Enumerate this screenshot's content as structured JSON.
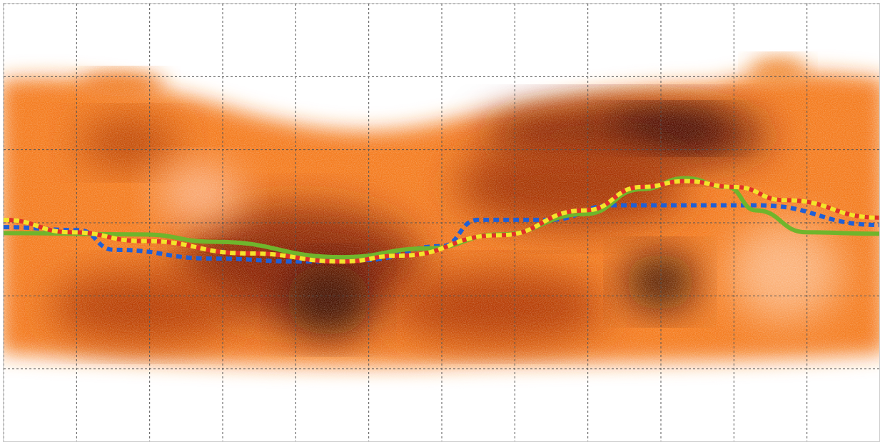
{
  "chart_data": {
    "type": "line",
    "xlim": [
      0,
      12
    ],
    "ylim": [
      0,
      6
    ],
    "xticks": [
      0,
      1,
      2,
      3,
      4,
      5,
      6,
      7,
      8,
      9,
      10,
      11,
      12
    ],
    "yticks": [
      0,
      1,
      2,
      3,
      4,
      5,
      6
    ],
    "grid": true,
    "series": [
      {
        "color": "#1f5fd6",
        "dashed": true,
        "x": [
          0,
          1.03,
          1.51,
          2.88,
          4.05,
          4.93,
          6.0,
          6.49,
          7.47,
          8.35,
          10.3,
          12
        ],
        "values": [
          2.94,
          2.9,
          2.63,
          2.51,
          2.47,
          2.49,
          2.68,
          3.04,
          3.04,
          3.24,
          3.24,
          2.97
        ]
      },
      {
        "color": "#6fb52c",
        "dashed": false,
        "x": [
          0,
          1.91,
          2.88,
          4.64,
          5.81,
          6.79,
          7.96,
          8.74,
          9.33,
          9.91,
          10.3,
          10.99,
          12
        ],
        "values": [
          2.86,
          2.84,
          2.74,
          2.53,
          2.65,
          2.84,
          3.12,
          3.46,
          3.61,
          3.49,
          3.17,
          2.87,
          2.85
        ]
      },
      {
        "color": "#f2e52a",
        "dashed": true,
        "x": [
          0,
          0.93,
          1.91,
          3.37,
          4.64,
          5.42,
          6.79,
          7.96,
          8.74,
          9.33,
          10.01,
          10.69,
          12
        ],
        "values": [
          3.04,
          2.87,
          2.75,
          2.58,
          2.47,
          2.55,
          2.83,
          3.17,
          3.49,
          3.57,
          3.49,
          3.31,
          3.07
        ]
      }
    ]
  }
}
